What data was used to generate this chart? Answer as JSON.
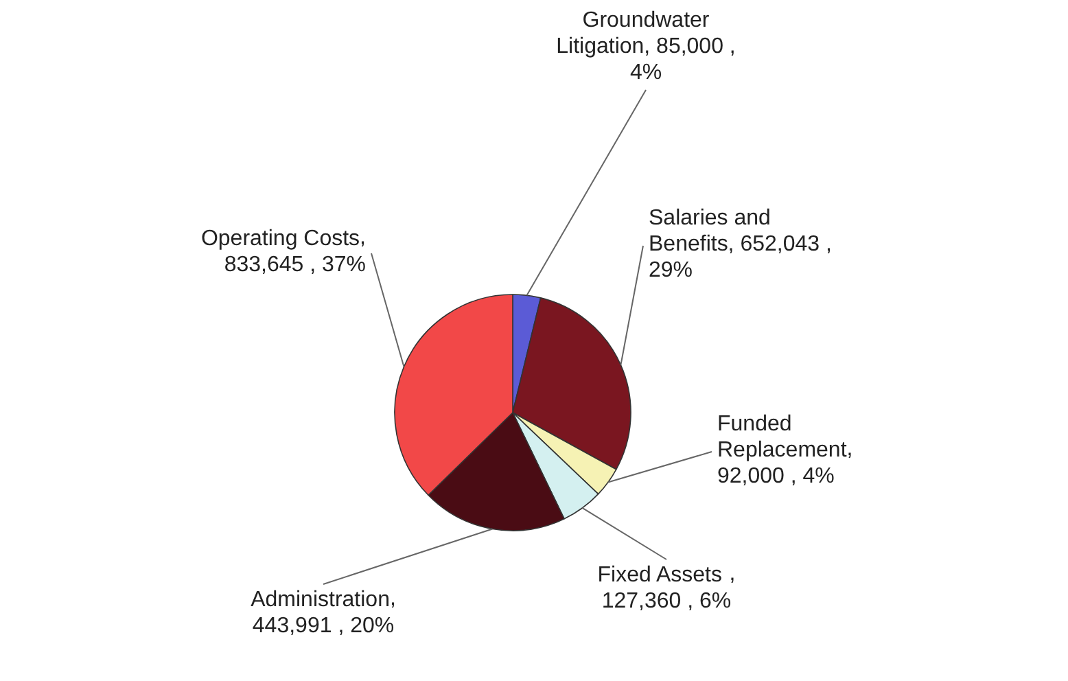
{
  "chart_data": {
    "type": "pie",
    "categories": [
      "Groundwater Litigation",
      "Salaries and Benefits",
      "Funded Replacement",
      "Fixed Assets",
      "Administration",
      "Operating Costs"
    ],
    "values": [
      85000,
      652043,
      92000,
      127360,
      443991,
      833645
    ],
    "value_labels": [
      ", 85,000 , 4%",
      ", 652,043 , 29%",
      ", 92,000 , 4%",
      " , 127,360 , 6%",
      ", 443,991 , 20%",
      ", 833,645 , 37%"
    ],
    "colors": [
      "#5b5bd6",
      "#7a1620",
      "#f6f2b4",
      "#d4f0f0",
      "#4a0c14",
      "#f24848"
    ]
  }
}
